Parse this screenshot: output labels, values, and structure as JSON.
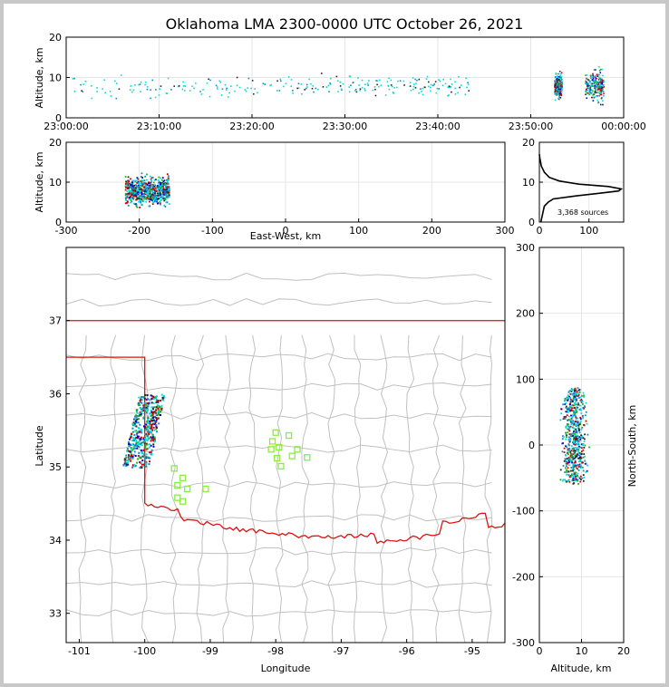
{
  "title": "Oklahoma LMA 2300-0000 UTC October 26, 2021",
  "colors": {
    "axis": "#000000",
    "grid": "#e6e6e6",
    "county": "#c0c0c0",
    "state": "#dd1111",
    "stations": "#88ee44",
    "density": [
      "#00dddd",
      "#1488c8",
      "#22aa22",
      "#0000cc",
      "#cc0000",
      "#222222"
    ]
  },
  "chart_data": [
    {
      "id": "time-height",
      "type": "scatter",
      "title": "",
      "xlabel": "",
      "ylabel": "Altitude, km",
      "xticks": [
        "23:00:00",
        "23:10:00",
        "23:20:00",
        "23:30:00",
        "23:40:00",
        "23:50:00",
        "00:00:00"
      ],
      "xlim_minutes": [
        0,
        60
      ],
      "ylim": [
        0,
        20
      ],
      "yticks": [
        0,
        10,
        20
      ],
      "clusters": [
        {
          "t_min": 0.5,
          "t_max": 43.5,
          "alt_center": 8,
          "alt_spread": 2.5,
          "density": "scattered"
        },
        {
          "t_min": 52.5,
          "t_max": 53.3,
          "alt_center": 8,
          "alt_spread": 3,
          "density": "dense"
        },
        {
          "t_min": 55.8,
          "t_max": 57.8,
          "alt_center": 8,
          "alt_spread": 3.5,
          "density": "dense"
        }
      ]
    },
    {
      "id": "ew-height",
      "type": "scatter",
      "xlabel": "East-West, km",
      "ylabel": "Altitude, km",
      "xlim": [
        -300,
        300
      ],
      "xticks": [
        -300,
        -200,
        -100,
        0,
        100,
        200,
        300
      ],
      "ylim": [
        0,
        20
      ],
      "yticks": [
        0,
        10,
        20
      ],
      "cluster": {
        "x_min": -220,
        "x_max": -160,
        "alt_center": 8,
        "alt_spread": 3
      }
    },
    {
      "id": "height-histogram",
      "type": "line",
      "xlim": [
        0,
        170
      ],
      "xticks": [
        0,
        100
      ],
      "ylim": [
        0,
        20
      ],
      "yticks": [
        0,
        10,
        20
      ],
      "annotation": "3,368 sources",
      "profile": [
        [
          3,
          0
        ],
        [
          10,
          4
        ],
        [
          18,
          5
        ],
        [
          28,
          5.8
        ],
        [
          70,
          6.5
        ],
        [
          120,
          7.2
        ],
        [
          160,
          7.8
        ],
        [
          165,
          8.3
        ],
        [
          140,
          8.9
        ],
        [
          80,
          9.5
        ],
        [
          40,
          10.3
        ],
        [
          20,
          11.2
        ],
        [
          10,
          12.5
        ],
        [
          4,
          14
        ],
        [
          1,
          16
        ],
        [
          0,
          17
        ]
      ]
    },
    {
      "id": "plan-view",
      "type": "scatter",
      "xlabel": "Longitude",
      "ylabel": "Latitude",
      "xlim": [
        -101.2,
        -94.5
      ],
      "xticks": [
        -101,
        -100,
        -99,
        -98,
        -97,
        -96,
        -95
      ],
      "ylim": [
        32.6,
        38.0
      ],
      "yticks": [
        33,
        34,
        35,
        36,
        37
      ],
      "source_clusters": [
        {
          "lon_min": -100.35,
          "lon_max": -99.7,
          "lat_min": 35.0,
          "lat_max": 36.0
        }
      ],
      "stations": [
        [
          -99.55,
          34.98
        ],
        [
          -99.42,
          34.85
        ],
        [
          -99.5,
          34.75
        ],
        [
          -99.35,
          34.7
        ],
        [
          -99.07,
          34.7
        ],
        [
          -99.5,
          34.58
        ],
        [
          -99.42,
          34.53
        ],
        [
          -98.0,
          35.47
        ],
        [
          -98.05,
          35.35
        ],
        [
          -98.07,
          35.24
        ],
        [
          -97.95,
          35.27
        ],
        [
          -97.8,
          35.43
        ],
        [
          -97.67,
          35.24
        ],
        [
          -97.75,
          35.15
        ],
        [
          -97.98,
          35.12
        ],
        [
          -97.92,
          35.01
        ],
        [
          -97.52,
          35.13
        ]
      ]
    },
    {
      "id": "ns-height",
      "type": "scatter",
      "xlabel": "Altitude, km",
      "ylabel": "North-South, km",
      "xlim": [
        0,
        20
      ],
      "xticks": [
        0,
        10,
        20
      ],
      "ylim": [
        -300,
        300
      ],
      "yticks": [
        -300,
        -200,
        -100,
        0,
        100,
        200,
        300
      ],
      "cluster": {
        "alt_center": 8,
        "alt_spread": 3,
        "y_min": -55,
        "y_max": 85
      }
    }
  ]
}
